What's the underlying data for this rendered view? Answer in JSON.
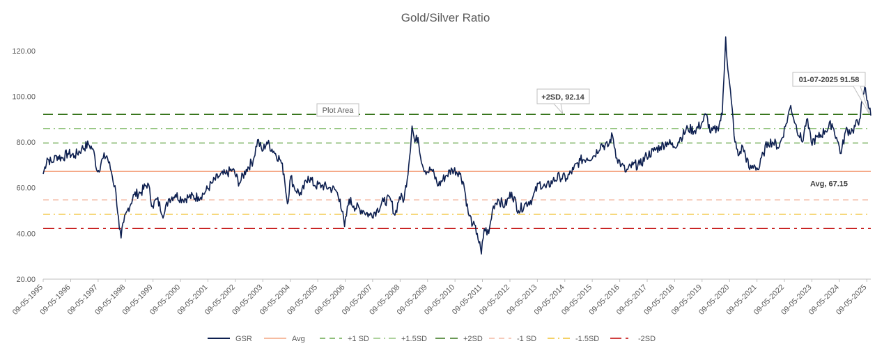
{
  "chart_data": {
    "type": "line",
    "title": "Gold/Silver Ratio",
    "xlabel": "",
    "ylabel": "",
    "ylim": [
      20,
      130
    ],
    "y_ticks": [
      "20.00",
      "40.00",
      "60.00",
      "80.00",
      "100.00",
      "120.00"
    ],
    "x_ticks": [
      "09-05-1995",
      "09-05-1996",
      "09-05-1997",
      "09-05-1998",
      "09-05-1999",
      "09-05-2000",
      "09-05-2001",
      "09-05-2002",
      "09-05-2003",
      "09-05-2004",
      "09-05-2005",
      "09-05-2006",
      "09-05-2007",
      "09-05-2008",
      "09-05-2009",
      "09-05-2010",
      "09-05-2011",
      "09-05-2012",
      "09-05-2013",
      "09-05-2014",
      "09-05-2015",
      "09-05-2016",
      "09-05-2017",
      "09-05-2018",
      "09-05-2019",
      "09-05-2020",
      "09-05-2021",
      "09-05-2022",
      "09-05-2023",
      "09-05-2024",
      "09-05-2025"
    ],
    "x_range": [
      "09-05-1995",
      "01-07-2025"
    ],
    "grid": false,
    "legend_position": "bottom",
    "series": [
      {
        "name": "GSR",
        "color": "#0d1f4f",
        "style": "solid",
        "points": [
          [
            "1995-05-09",
            66
          ],
          [
            "1995-07-01",
            73
          ],
          [
            "1995-09-01",
            71
          ],
          [
            "1995-11-01",
            74
          ],
          [
            "1996-01-15",
            73
          ],
          [
            "1996-04-01",
            75
          ],
          [
            "1996-07-01",
            74
          ],
          [
            "1996-10-01",
            77
          ],
          [
            "1997-01-01",
            79
          ],
          [
            "1997-03-01",
            77
          ],
          [
            "1997-05-01",
            67
          ],
          [
            "1997-07-15",
            73
          ],
          [
            "1997-09-01",
            74
          ],
          [
            "1997-11-01",
            67
          ],
          [
            "1998-01-01",
            58
          ],
          [
            "1998-02-15",
            42
          ],
          [
            "1998-03-10",
            38
          ],
          [
            "1998-04-15",
            45
          ],
          [
            "1998-06-01",
            50
          ],
          [
            "1998-09-01",
            57
          ],
          [
            "1998-12-01",
            58
          ],
          [
            "1999-03-01",
            62
          ],
          [
            "1999-05-01",
            52
          ],
          [
            "1999-07-01",
            55
          ],
          [
            "1999-10-01",
            48
          ],
          [
            "1999-12-01",
            55
          ],
          [
            "2000-03-01",
            57
          ],
          [
            "2000-06-01",
            55
          ],
          [
            "2000-09-01",
            56
          ],
          [
            "2001-01-01",
            56
          ],
          [
            "2001-04-01",
            58
          ],
          [
            "2001-07-01",
            62
          ],
          [
            "2001-10-01",
            65
          ],
          [
            "2002-01-01",
            66
          ],
          [
            "2002-04-01",
            68
          ],
          [
            "2002-07-01",
            62
          ],
          [
            "2002-10-01",
            68
          ],
          [
            "2003-01-01",
            72
          ],
          [
            "2003-03-01",
            81
          ],
          [
            "2003-05-01",
            76
          ],
          [
            "2003-07-01",
            80
          ],
          [
            "2003-10-01",
            76
          ],
          [
            "2004-01-01",
            72
          ],
          [
            "2004-02-15",
            66
          ],
          [
            "2004-04-01",
            53
          ],
          [
            "2004-05-15",
            65
          ],
          [
            "2004-07-01",
            60
          ],
          [
            "2004-10-01",
            57
          ],
          [
            "2005-01-01",
            65
          ],
          [
            "2005-04-01",
            61
          ],
          [
            "2005-07-01",
            61
          ],
          [
            "2005-10-01",
            60
          ],
          [
            "2006-01-01",
            59
          ],
          [
            "2006-03-01",
            55
          ],
          [
            "2006-05-01",
            43
          ],
          [
            "2006-07-01",
            55
          ],
          [
            "2006-09-01",
            52
          ],
          [
            "2007-01-01",
            50
          ],
          [
            "2007-04-01",
            48
          ],
          [
            "2007-07-01",
            50
          ],
          [
            "2007-10-01",
            54
          ],
          [
            "2008-01-01",
            55
          ],
          [
            "2008-03-01",
            48
          ],
          [
            "2008-05-01",
            56
          ],
          [
            "2008-07-01",
            55
          ],
          [
            "2008-09-01",
            70
          ],
          [
            "2008-10-15",
            87
          ],
          [
            "2008-11-20",
            80
          ],
          [
            "2009-01-01",
            82
          ],
          [
            "2009-03-01",
            70
          ],
          [
            "2009-05-01",
            67
          ],
          [
            "2009-07-01",
            68
          ],
          [
            "2009-10-01",
            61
          ],
          [
            "2010-01-01",
            65
          ],
          [
            "2010-04-01",
            68
          ],
          [
            "2010-07-01",
            67
          ],
          [
            "2010-09-01",
            62
          ],
          [
            "2010-11-01",
            49
          ],
          [
            "2011-01-01",
            44
          ],
          [
            "2011-03-01",
            40
          ],
          [
            "2011-04-25",
            31
          ],
          [
            "2011-06-01",
            42
          ],
          [
            "2011-08-01",
            40
          ],
          [
            "2011-10-01",
            52
          ],
          [
            "2011-12-01",
            55
          ],
          [
            "2012-03-01",
            52
          ],
          [
            "2012-06-01",
            58
          ],
          [
            "2012-09-01",
            50
          ],
          [
            "2012-12-01",
            53
          ],
          [
            "2013-03-01",
            55
          ],
          [
            "2013-06-01",
            62
          ],
          [
            "2013-09-01",
            60
          ],
          [
            "2013-12-01",
            63
          ],
          [
            "2014-03-01",
            65
          ],
          [
            "2014-06-01",
            64
          ],
          [
            "2014-09-01",
            68
          ],
          [
            "2014-12-01",
            72
          ],
          [
            "2015-03-01",
            73
          ],
          [
            "2015-06-01",
            74
          ],
          [
            "2015-09-01",
            79
          ],
          [
            "2015-12-01",
            78
          ],
          [
            "2016-02-01",
            83
          ],
          [
            "2016-04-01",
            73
          ],
          [
            "2016-06-01",
            70
          ],
          [
            "2016-08-01",
            67
          ],
          [
            "2016-11-01",
            70
          ],
          [
            "2017-02-01",
            70
          ],
          [
            "2017-05-01",
            74
          ],
          [
            "2017-08-01",
            76
          ],
          [
            "2017-11-01",
            78
          ],
          [
            "2018-02-01",
            80
          ],
          [
            "2018-05-01",
            78
          ],
          [
            "2018-08-01",
            82
          ],
          [
            "2018-11-01",
            86
          ],
          [
            "2019-02-01",
            85
          ],
          [
            "2019-05-01",
            88
          ],
          [
            "2019-07-01",
            92
          ],
          [
            "2019-09-01",
            84
          ],
          [
            "2019-12-01",
            86
          ],
          [
            "2020-02-01",
            92
          ],
          [
            "2020-03-18",
            126
          ],
          [
            "2020-04-15",
            112
          ],
          [
            "2020-06-01",
            98
          ],
          [
            "2020-07-20",
            80
          ],
          [
            "2020-09-01",
            74
          ],
          [
            "2020-11-01",
            78
          ],
          [
            "2021-02-01",
            68
          ],
          [
            "2021-04-01",
            70
          ],
          [
            "2021-06-01",
            68
          ],
          [
            "2021-08-01",
            75
          ],
          [
            "2021-10-01",
            80
          ],
          [
            "2021-12-01",
            80
          ],
          [
            "2022-03-01",
            78
          ],
          [
            "2022-06-01",
            88
          ],
          [
            "2022-08-01",
            96
          ],
          [
            "2022-10-01",
            88
          ],
          [
            "2023-01-01",
            80
          ],
          [
            "2023-03-01",
            90
          ],
          [
            "2023-05-01",
            80
          ],
          [
            "2023-08-01",
            82
          ],
          [
            "2023-11-01",
            85
          ],
          [
            "2024-02-01",
            88
          ],
          [
            "2024-04-01",
            82
          ],
          [
            "2024-06-01",
            75
          ],
          [
            "2024-08-01",
            85
          ],
          [
            "2024-11-01",
            85
          ],
          [
            "2025-02-01",
            90
          ],
          [
            "2025-04-10",
            104
          ],
          [
            "2025-05-20",
            98
          ],
          [
            "2025-07-01",
            91.58
          ]
        ]
      },
      {
        "name": "Avg",
        "color": "#f4a582",
        "style": "solid",
        "value": 67.15
      },
      {
        "name": "+1 SD",
        "color": "#6aa84f",
        "style": "dash",
        "value": 79.6
      },
      {
        "name": "+1.5SD",
        "color": "#93c47d",
        "style": "dashdot",
        "value": 85.9
      },
      {
        "name": "+2SD",
        "color": "#38761d",
        "style": "longdash",
        "value": 92.14
      },
      {
        "name": "-1 SD",
        "color": "#f4b9a3",
        "style": "dash",
        "value": 54.7
      },
      {
        "name": "-1.5SD",
        "color": "#f1c232",
        "style": "dashdot",
        "value": 48.4
      },
      {
        "name": "-2SD",
        "color": "#c00000",
        "style": "longdashdot",
        "value": 42.16
      }
    ],
    "annotations": [
      {
        "text": "+2SD, 92.14",
        "x": "2014-05-09",
        "y": 92.14,
        "callout": true
      },
      {
        "text": "01-07-2025 91.58",
        "x": "2025-07-01",
        "y": 91.58,
        "callout": true
      },
      {
        "text": "Avg, 67.15",
        "x": "2025-07-01",
        "y": 67.15,
        "callout": false
      },
      {
        "text": "Plot Area",
        "x": "2004-12-01",
        "y": 97,
        "callout": false
      }
    ]
  }
}
